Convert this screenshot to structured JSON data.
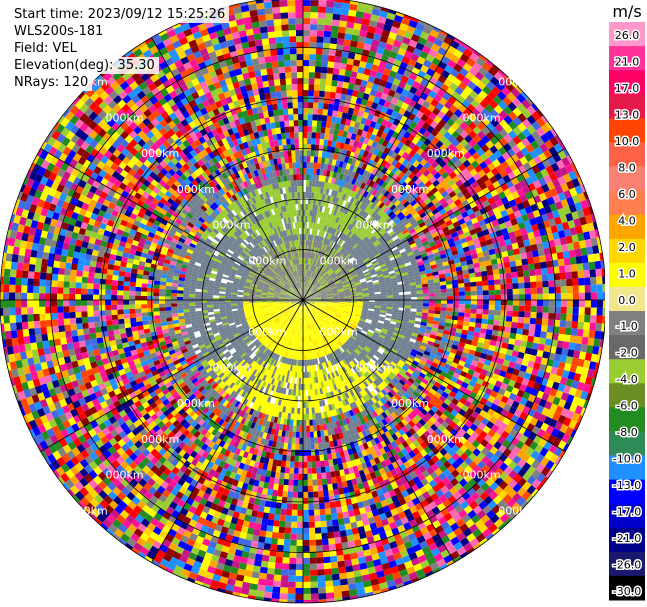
{
  "header": {
    "start_time": "Start time: 2023/09/12 15:25:26",
    "instrument": "WLS200s-181",
    "field": "Field: VEL",
    "elevation": "Elevation(deg): 35.30",
    "nrays": "NRays: 120"
  },
  "chart_data": {
    "type": "heatmap",
    "projection": "polar",
    "title": "",
    "n_rays": 120,
    "range_rings_km": [
      0.5,
      1.0,
      1.5,
      2.0,
      2.5,
      3.0
    ],
    "ring_label_text": "000km",
    "colorbar": {
      "unit": "m/s",
      "ticks": [
        "26.0",
        "21.0",
        "17.0",
        "13.0",
        "10.0",
        "8.0",
        "6.0",
        "4.0",
        "2.0",
        "1.0",
        "0.0",
        "-1.0",
        "-2.0",
        "-4.0",
        "-6.0",
        "-8.0",
        "-10.0",
        "-13.0",
        "-17.0",
        "-21.0",
        "-26.0",
        "-30.0"
      ],
      "colors": [
        "#ff99cc",
        "#ff3399",
        "#ff0066",
        "#e6194b",
        "#ff4500",
        "#ff6347",
        "#fa8072",
        "#ff7f50",
        "#ffa500",
        "#ffd700",
        "#ffff00",
        "#f0e68c",
        "#808080",
        "#696969",
        "#9acd32",
        "#6b8e23",
        "#228b22",
        "#2e8b57",
        "#1e90ff",
        "#0000ff",
        "#0000cd",
        "#00008b",
        "#191970",
        "#000000"
      ]
    },
    "regions": [
      {
        "name": "inner-positive",
        "approx_velocity_ms": 2.0
      },
      {
        "name": "inner-negative",
        "approx_velocity_ms": -2.0
      },
      {
        "name": "outer-noise",
        "approx_velocity_ms": null
      }
    ]
  }
}
